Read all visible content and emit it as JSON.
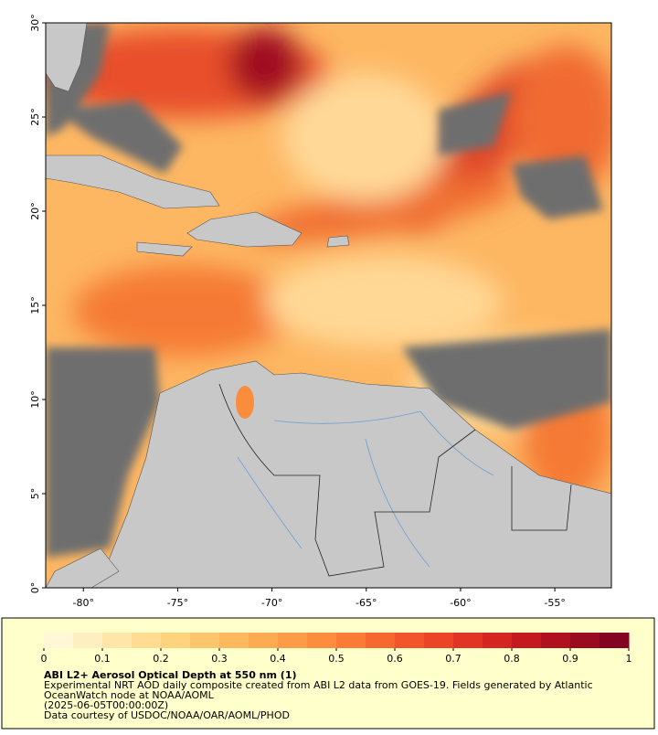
{
  "map": {
    "xlim": [
      -82,
      -52
    ],
    "ylim": [
      0,
      30
    ],
    "xticks": [
      {
        "value": -80,
        "label": "-80°"
      },
      {
        "value": -75,
        "label": "-75°"
      },
      {
        "value": -70,
        "label": "-70°"
      },
      {
        "value": -65,
        "label": "-65°"
      },
      {
        "value": -60,
        "label": "-60°"
      },
      {
        "value": -55,
        "label": "-55°"
      }
    ],
    "yticks": [
      {
        "value": 0,
        "label": "0°"
      },
      {
        "value": 5,
        "label": "5°"
      },
      {
        "value": 10,
        "label": "10°"
      },
      {
        "value": 15,
        "label": "15°"
      },
      {
        "value": 20,
        "label": "20°"
      },
      {
        "value": 25,
        "label": "25°"
      },
      {
        "value": 30,
        "label": "30°"
      }
    ]
  },
  "colorbar": {
    "lim": [
      0,
      1
    ],
    "ticks": [
      0,
      0.1,
      0.2,
      0.3,
      0.4,
      0.5,
      0.6,
      0.7,
      0.8,
      0.9,
      1
    ],
    "colors": [
      "#fff7d6",
      "#ffefc0",
      "#ffe6a8",
      "#ffdc92",
      "#ffd27e",
      "#fec66c",
      "#feb95e",
      "#fdab52",
      "#fd9c48",
      "#fc8d3e",
      "#fa7b36",
      "#f76830",
      "#f2552b",
      "#eb4427",
      "#e13424",
      "#d42521",
      "#c41a1f",
      "#b0111f",
      "#9a0a20",
      "#830320"
    ]
  },
  "caption": {
    "title": "ABI L2+ Aerosol Optical Depth at 550 nm (1)",
    "lines": [
      "Experimental NRT AOD daily composite created from ABI L2 data from GOES-19. Fields generated by Atlantic",
      "OceanWatch node at NOAA/AOML",
      "(2025-06-05T00:00:00Z)",
      "Data courtesy of USDOC/NOAA/OAR/AOML/PHOD"
    ]
  }
}
